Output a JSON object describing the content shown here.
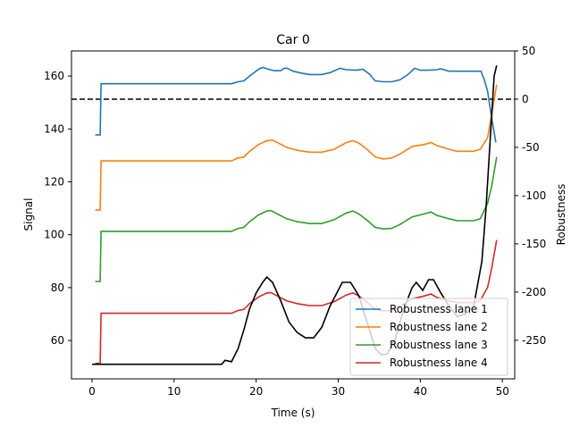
{
  "chart_data": {
    "type": "line",
    "title": "Car 0",
    "xlabel": "Time (s)",
    "ylabel": "Signal",
    "y2label": "Robustness",
    "xlim": [
      -2.5,
      51.5
    ],
    "ylim": [
      45.5,
      169.5
    ],
    "y2lim": [
      -290,
      50
    ],
    "xticks": [
      0,
      10,
      20,
      30,
      40,
      50
    ],
    "yticks": [
      60,
      80,
      100,
      120,
      140,
      160
    ],
    "y2ticks": [
      -250,
      -200,
      -150,
      -100,
      -50,
      0,
      50
    ],
    "threshold": {
      "axis": "right",
      "value": 0,
      "style": "dashed",
      "color": "#000000"
    },
    "signal": {
      "name": "Signal",
      "color": "#000000",
      "points": [
        [
          0,
          51
        ],
        [
          15.8,
          51
        ],
        [
          16.2,
          52.5
        ],
        [
          17,
          52
        ],
        [
          17.8,
          57
        ],
        [
          18.5,
          64
        ],
        [
          19.2,
          72
        ],
        [
          20,
          78
        ],
        [
          20.8,
          82
        ],
        [
          21.3,
          84
        ],
        [
          22,
          82
        ],
        [
          23,
          75
        ],
        [
          24,
          67
        ],
        [
          25,
          63
        ],
        [
          26,
          61
        ],
        [
          27,
          61
        ],
        [
          28,
          65
        ],
        [
          29,
          73
        ],
        [
          30,
          79
        ],
        [
          30.5,
          82
        ],
        [
          31.5,
          82
        ],
        [
          32.5,
          77
        ],
        [
          33.5,
          67
        ],
        [
          34.5,
          57
        ],
        [
          35.3,
          54.5
        ],
        [
          36,
          55
        ],
        [
          37,
          61
        ],
        [
          38,
          72
        ],
        [
          39,
          80
        ],
        [
          39.5,
          82
        ],
        [
          40.3,
          79
        ],
        [
          41,
          83
        ],
        [
          41.6,
          83
        ],
        [
          42.5,
          78
        ],
        [
          43.5,
          73
        ],
        [
          44.5,
          69
        ],
        [
          45.5,
          70
        ],
        [
          46.5,
          73
        ],
        [
          47.5,
          90
        ],
        [
          48,
          110
        ],
        [
          48.5,
          135
        ],
        [
          49,
          160
        ],
        [
          49.3,
          164
        ]
      ]
    },
    "series": [
      {
        "name": "Robustness lane 1",
        "color": "#1f77b4",
        "points": [
          [
            0.4,
            -37
          ],
          [
            1.0,
            -37
          ],
          [
            1.1,
            16
          ],
          [
            17,
            16
          ],
          [
            17.8,
            18
          ],
          [
            18.5,
            19
          ],
          [
            19.2,
            24
          ],
          [
            20.3,
            31
          ],
          [
            20.8,
            33
          ],
          [
            21.5,
            31
          ],
          [
            22.2,
            29.5
          ],
          [
            23,
            29.5
          ],
          [
            23.4,
            32
          ],
          [
            23.8,
            32
          ],
          [
            24.5,
            29
          ],
          [
            25.5,
            27
          ],
          [
            26.5,
            25.5
          ],
          [
            28,
            25.5
          ],
          [
            29,
            27.5
          ],
          [
            30.2,
            32
          ],
          [
            31,
            30.5
          ],
          [
            32.2,
            30
          ],
          [
            33,
            31
          ],
          [
            33.8,
            26
          ],
          [
            34.5,
            19
          ],
          [
            35.5,
            18
          ],
          [
            36.5,
            18
          ],
          [
            37.5,
            20
          ],
          [
            38.5,
            25.5
          ],
          [
            39.3,
            32
          ],
          [
            40,
            30
          ],
          [
            41,
            30
          ],
          [
            42,
            30.5
          ],
          [
            42.5,
            31.5
          ],
          [
            43.5,
            29
          ],
          [
            46,
            29
          ],
          [
            47,
            29
          ],
          [
            47.4,
            29
          ],
          [
            47.8,
            20
          ],
          [
            48.2,
            8
          ],
          [
            48.7,
            -20
          ],
          [
            49.2,
            -45
          ]
        ]
      },
      {
        "name": "Robustness lane 2",
        "color": "#ff7f0e",
        "points": [
          [
            0.4,
            -115
          ],
          [
            1.0,
            -115
          ],
          [
            1.1,
            -64
          ],
          [
            17,
            -64
          ],
          [
            17.8,
            -61
          ],
          [
            18.5,
            -60
          ],
          [
            19.2,
            -54
          ],
          [
            20.3,
            -47
          ],
          [
            21.3,
            -43
          ],
          [
            22,
            -42.5
          ],
          [
            22.8,
            -46
          ],
          [
            23.7,
            -50
          ],
          [
            25,
            -53
          ],
          [
            26.5,
            -55
          ],
          [
            28,
            -55
          ],
          [
            29.5,
            -52
          ],
          [
            31,
            -45
          ],
          [
            31.8,
            -43
          ],
          [
            32.5,
            -45.5
          ],
          [
            33.5,
            -52
          ],
          [
            34.5,
            -60
          ],
          [
            35.5,
            -62
          ],
          [
            36.5,
            -61
          ],
          [
            37.5,
            -57
          ],
          [
            39,
            -49
          ],
          [
            40.5,
            -47
          ],
          [
            41.3,
            -45
          ],
          [
            42,
            -48
          ],
          [
            43.5,
            -52
          ],
          [
            44.5,
            -54
          ],
          [
            46.5,
            -54
          ],
          [
            47.3,
            -52
          ],
          [
            48.2,
            -40
          ],
          [
            48.7,
            -15
          ],
          [
            49.3,
            15
          ]
        ]
      },
      {
        "name": "Robustness lane 3",
        "color": "#2ca02c",
        "points": [
          [
            0.4,
            -189
          ],
          [
            1.0,
            -189
          ],
          [
            1.1,
            -137
          ],
          [
            17,
            -137
          ],
          [
            17.8,
            -134
          ],
          [
            18.5,
            -133
          ],
          [
            19.2,
            -127
          ],
          [
            20.3,
            -120
          ],
          [
            21.3,
            -116
          ],
          [
            21.8,
            -115.5
          ],
          [
            22.8,
            -120
          ],
          [
            23.7,
            -124
          ],
          [
            25,
            -127
          ],
          [
            26.5,
            -129
          ],
          [
            28,
            -129
          ],
          [
            29.5,
            -125
          ],
          [
            31,
            -118
          ],
          [
            31.8,
            -116
          ],
          [
            32.5,
            -119
          ],
          [
            33.5,
            -125.5
          ],
          [
            34.5,
            -133
          ],
          [
            35.5,
            -134.5
          ],
          [
            36.5,
            -134
          ],
          [
            37.5,
            -130
          ],
          [
            39,
            -122
          ],
          [
            40.5,
            -119
          ],
          [
            41.3,
            -117
          ],
          [
            42,
            -120.5
          ],
          [
            43.5,
            -124
          ],
          [
            44.5,
            -126
          ],
          [
            46.5,
            -126
          ],
          [
            47.3,
            -124
          ],
          [
            48.2,
            -108
          ],
          [
            48.7,
            -90
          ],
          [
            49.3,
            -60
          ]
        ]
      },
      {
        "name": "Robustness lane 4",
        "color": "#d62728",
        "points": [
          [
            0.4,
            -274
          ],
          [
            1.0,
            -274
          ],
          [
            1.1,
            -222
          ],
          [
            17,
            -222
          ],
          [
            17.8,
            -219
          ],
          [
            18.5,
            -218
          ],
          [
            19.2,
            -212
          ],
          [
            20.3,
            -205
          ],
          [
            21.3,
            -201
          ],
          [
            21.8,
            -200.5
          ],
          [
            22.8,
            -205
          ],
          [
            23.7,
            -209
          ],
          [
            25,
            -212
          ],
          [
            26.5,
            -214
          ],
          [
            28,
            -214
          ],
          [
            29.5,
            -210
          ],
          [
            31,
            -203
          ],
          [
            31.8,
            -201
          ],
          [
            32.5,
            -204
          ],
          [
            33.5,
            -210.5
          ],
          [
            34.5,
            -218
          ],
          [
            35.5,
            -219.5
          ],
          [
            36.5,
            -219
          ],
          [
            37.5,
            -215
          ],
          [
            39,
            -207
          ],
          [
            40.5,
            -204
          ],
          [
            41.3,
            -202
          ],
          [
            42,
            -205.5
          ],
          [
            43.5,
            -209
          ],
          [
            44.5,
            -211
          ],
          [
            46.5,
            -211
          ],
          [
            47.3,
            -209
          ],
          [
            48.2,
            -195
          ],
          [
            48.7,
            -175
          ],
          [
            49.3,
            -146
          ]
        ]
      }
    ],
    "legend_position": "lower-right"
  }
}
